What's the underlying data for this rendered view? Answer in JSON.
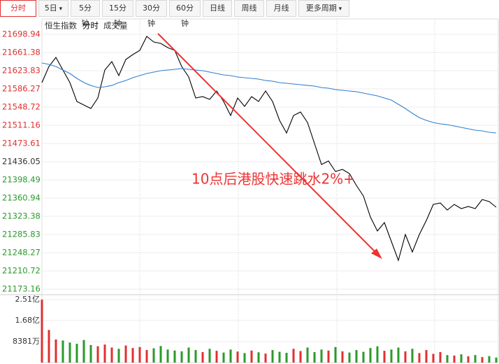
{
  "toolbar": {
    "tabs": [
      "分时",
      "5日",
      "5分钟",
      "15分钟",
      "30分钟",
      "60分钟",
      "日线",
      "周线",
      "月线",
      "更多周期"
    ]
  },
  "chart_data": [
    {
      "type": "line",
      "title": "恒生指数",
      "annotation": "10点后港股快速跳水2%+",
      "ylim": [
        21173.16,
        21698.94
      ],
      "yticks": [
        21698.94,
        21661.38,
        21623.83,
        21586.27,
        21548.72,
        21511.16,
        21473.61,
        21436.05,
        21398.49,
        21360.94,
        21323.38,
        21285.83,
        21248.27,
        21210.72,
        21173.16
      ],
      "grid": true,
      "series": [
        {
          "name": "分时",
          "color": "#000000",
          "values": [
            21599.3,
            21632.5,
            21651.3,
            21625.3,
            21599.3,
            21560.3,
            21553.1,
            21545.8,
            21567.5,
            21625.3,
            21642.6,
            21613.7,
            21646.9,
            21657.1,
            21665.7,
            21694.6,
            21683.1,
            21680.2,
            21671.5,
            21665.7,
            21632.5,
            21610.8,
            21567.5,
            21570.4,
            21564.6,
            21581.9,
            21560.3,
            21531.4,
            21567.5,
            21550.2,
            21570.4,
            21560.3,
            21581.9,
            21560.3,
            21521.3,
            21495.3,
            21531.4,
            21538.6,
            21516.9,
            21473.6,
            21430.3,
            21437.5,
            21415.8,
            21420.2,
            21411.5,
            21387.0,
            21365.3,
            21322.0,
            21293.1,
            21310.4,
            21271.4,
            21232.4,
            21285.8,
            21249.7,
            21285.8,
            21314.7,
            21347.9,
            21350.8,
            21336.4,
            21347.9,
            21339.3,
            21343.6,
            21339.3,
            21358.1,
            21353.7,
            21342.2
          ]
        },
        {
          "color": "#2f7fd0",
          "values": [
            21639.7,
            21636.8,
            21632.5,
            21625.3,
            21618.0,
            21607.9,
            21599.3,
            21593.4,
            21589.2,
            21590.6,
            21593.4,
            21599.3,
            21603.6,
            21609.4,
            21613.7,
            21618.0,
            21620.9,
            21623.8,
            21625.3,
            21626.7,
            21628.2,
            21626.7,
            21625.3,
            21623.8,
            21620.9,
            21618.0,
            21615.2,
            21613.7,
            21610.8,
            21609.4,
            21607.9,
            21606.5,
            21603.6,
            21602.2,
            21599.3,
            21597.8,
            21596.4,
            21594.9,
            21593.4,
            21592.0,
            21589.2,
            21587.7,
            21584.8,
            21583.4,
            21581.9,
            21580.5,
            21577.6,
            21574.7,
            21571.8,
            21567.5,
            21563.2,
            21554.5,
            21545.8,
            21535.8,
            21527.1,
            21521.3,
            21516.9,
            21514.1,
            21512.6,
            21509.7,
            21506.8,
            21503.9,
            21501.0,
            21499.6,
            21496.7,
            21495.3
          ]
        }
      ]
    },
    {
      "type": "bar",
      "ylim": [
        0,
        251000000
      ],
      "yticks": [
        {
          "value": 251000000,
          "label": "2.51亿"
        },
        {
          "value": 168000000,
          "label": "1.68亿"
        },
        {
          "value": 83810000,
          "label": "8381万"
        }
      ],
      "series": [
        {
          "name": "成交量",
          "up_color": "#e03030",
          "down_color": "#2a9a2a",
          "values": [
            251000000,
            130000000,
            92000000,
            88000000,
            80000000,
            75000000,
            90000000,
            70000000,
            65000000,
            72000000,
            60000000,
            55000000,
            68000000,
            58000000,
            62000000,
            50000000,
            57000000,
            66000000,
            52000000,
            48000000,
            45000000,
            60000000,
            50000000,
            42000000,
            55000000,
            47000000,
            40000000,
            52000000,
            44000000,
            38000000,
            48000000,
            41000000,
            36000000,
            50000000,
            43000000,
            39000000,
            55000000,
            46000000,
            60000000,
            42000000,
            52000000,
            48000000,
            62000000,
            45000000,
            40000000,
            50000000,
            43000000,
            58000000,
            65000000,
            47000000,
            52000000,
            60000000,
            45000000,
            55000000,
            38000000,
            50000000,
            35000000,
            42000000,
            30000000,
            28000000,
            33000000,
            25000000,
            30000000,
            22000000,
            26000000,
            20000000
          ]
        }
      ]
    }
  ]
}
